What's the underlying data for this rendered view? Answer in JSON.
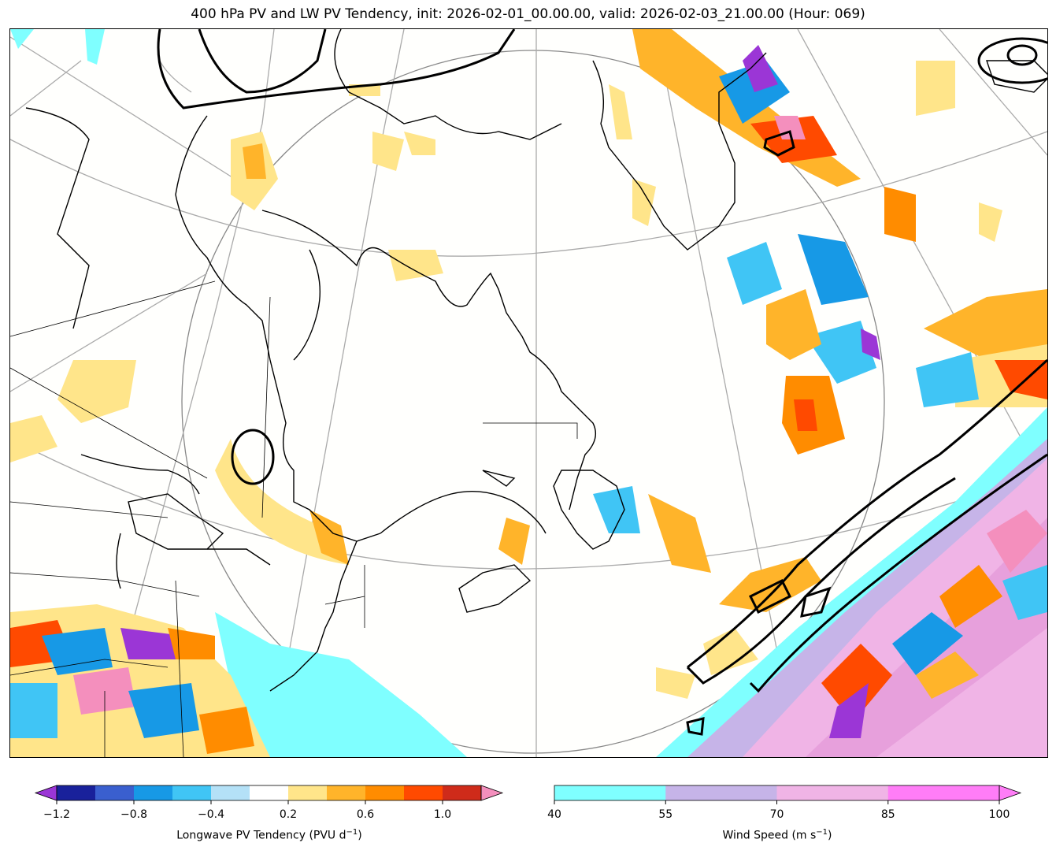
{
  "title": "400 hPa PV and LW PV Tendency, init: 2026-02-01_00.00.00, valid: 2026-02-03_21.00.00 (Hour: 069)",
  "colorbars": {
    "pv_tendency": {
      "label_main": "Longwave PV Tendency (PVU d",
      "label_exp": "−1",
      "label_end": ")",
      "ticks": [
        "−1.2",
        "−0.8",
        "−0.4",
        "0.2",
        "0.6",
        "1.0"
      ],
      "colors": [
        "#19219b",
        "#3a5fcf",
        "#1799e6",
        "#40c5f5",
        "#b4e1f7",
        "#ffffff",
        "#ffe58a",
        "#ffb42a",
        "#ff8c00",
        "#ff4a00",
        "#cf2b1a"
      ],
      "under_color": "#9b36d6",
      "over_color": "#f48fbd"
    },
    "wind_speed": {
      "label_main": "Wind Speed (m s",
      "label_exp": "−1",
      "label_end": ")",
      "ticks": [
        "40",
        "55",
        "70",
        "85",
        "100"
      ],
      "colors": [
        "#7fffff",
        "#c6b4e8",
        "#f0b4e6",
        "#ff7df7"
      ]
    }
  },
  "map": {
    "features": [
      "coastlines",
      "state-borders",
      "lat-lon-grid",
      "pv-2-contours",
      "pv-tendency-shading",
      "wind-speed-shading"
    ]
  }
}
